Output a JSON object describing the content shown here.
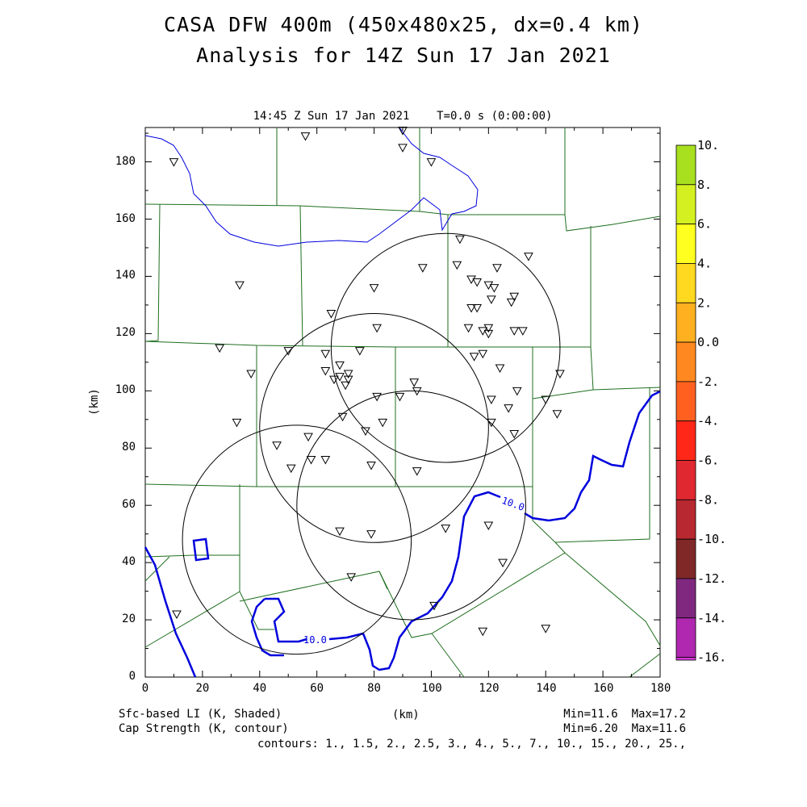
{
  "title_line1": "CASA DFW 400m (450x480x25, dx=0.4 km)",
  "title_line2": "Analysis for 14Z Sun 17 Jan 2021",
  "valid_time": "14:45 Z Sun 17 Jan 2021    T=0.0 s (0:00:00)",
  "axes": {
    "xlabel": "(km)",
    "ylabel": "(km)",
    "xlim": [
      0,
      180
    ],
    "ylim": [
      0,
      192
    ],
    "x_ticks": [
      "0",
      "20",
      "40",
      "60",
      "80",
      "100",
      "120",
      "140",
      "160",
      "180"
    ],
    "y_ticks": [
      "0",
      "20",
      "40",
      "60",
      "80",
      "100",
      "120",
      "140",
      "160",
      "180"
    ]
  },
  "footer": {
    "shaded_label": "Sfc-based LI (K, Shaded)",
    "contour_label": "Cap Strength (K, contour)",
    "shaded_minmax": "Min=11.6  Max=17.2",
    "contour_minmax": "Min=6.20  Max=11.6",
    "contours": "contours: 1., 1.5, 2., 2.5, 3., 4., 5., 7., 10., 15., 20., 25.,"
  },
  "colorbar": {
    "labels": [
      "10.",
      "8.",
      "6.",
      "4.",
      "2.",
      "0.0",
      "-2.",
      "-4.",
      "-6.",
      "-8.",
      "-10.",
      "-12.",
      "-14.",
      "-16."
    ],
    "colors": [
      "#a8e020",
      "#d4f020",
      "#ffff20",
      "#ffd820",
      "#ffb020",
      "#ff8820",
      "#ff6020",
      "#ff2818",
      "#e02830",
      "#b82830",
      "#802828",
      "#802880",
      "#b028b0",
      "#d838d8"
    ]
  },
  "contour_label": "10.0",
  "colors": {
    "county_lines": "#1f6e1f",
    "contour": "#0000dd",
    "radar_rings": "#000000"
  },
  "radar_rings_km": [
    {
      "cx": 105,
      "cy": 115,
      "r": 40
    },
    {
      "cx": 80,
      "cy": 87,
      "r": 40
    },
    {
      "cx": 93,
      "cy": 60,
      "r": 40
    },
    {
      "cx": 53,
      "cy": 48,
      "r": 40
    }
  ],
  "station_markers_km": [
    [
      56,
      189
    ],
    [
      90,
      191
    ],
    [
      10,
      180
    ],
    [
      90,
      185
    ],
    [
      100,
      180
    ],
    [
      33,
      137
    ],
    [
      110,
      153
    ],
    [
      134,
      147
    ],
    [
      97,
      143
    ],
    [
      123,
      143
    ],
    [
      109,
      144
    ],
    [
      114,
      139
    ],
    [
      116,
      138
    ],
    [
      120,
      137
    ],
    [
      122,
      136
    ],
    [
      80,
      136
    ],
    [
      128,
      131
    ],
    [
      129,
      133
    ],
    [
      121,
      132
    ],
    [
      114,
      129
    ],
    [
      116,
      129
    ],
    [
      65,
      127
    ],
    [
      113,
      122
    ],
    [
      118,
      121
    ],
    [
      120,
      122
    ],
    [
      120,
      120
    ],
    [
      129,
      121
    ],
    [
      132,
      121
    ],
    [
      81,
      122
    ],
    [
      26,
      115
    ],
    [
      75,
      114
    ],
    [
      50,
      114
    ],
    [
      63,
      113
    ],
    [
      115,
      112
    ],
    [
      118,
      113
    ],
    [
      124,
      108
    ],
    [
      63,
      107
    ],
    [
      37,
      106
    ],
    [
      68,
      105
    ],
    [
      66,
      104
    ],
    [
      71,
      104
    ],
    [
      71,
      106
    ],
    [
      70,
      102
    ],
    [
      68,
      109
    ],
    [
      145,
      106
    ],
    [
      94,
      103
    ],
    [
      95,
      100
    ],
    [
      130,
      100
    ],
    [
      89,
      98
    ],
    [
      81,
      98
    ],
    [
      121,
      97
    ],
    [
      140,
      97
    ],
    [
      127,
      94
    ],
    [
      144,
      92
    ],
    [
      69,
      91
    ],
    [
      32,
      89
    ],
    [
      83,
      89
    ],
    [
      121,
      89
    ],
    [
      129,
      85
    ],
    [
      77,
      86
    ],
    [
      57,
      84
    ],
    [
      46,
      81
    ],
    [
      58,
      76
    ],
    [
      63,
      76
    ],
    [
      79,
      74
    ],
    [
      51,
      73
    ],
    [
      95,
      72
    ],
    [
      68,
      51
    ],
    [
      79,
      50
    ],
    [
      105,
      52
    ],
    [
      120,
      53
    ],
    [
      125,
      40
    ],
    [
      72,
      35
    ],
    [
      101,
      25
    ],
    [
      11,
      22
    ],
    [
      118,
      16
    ],
    [
      140,
      17
    ]
  ]
}
